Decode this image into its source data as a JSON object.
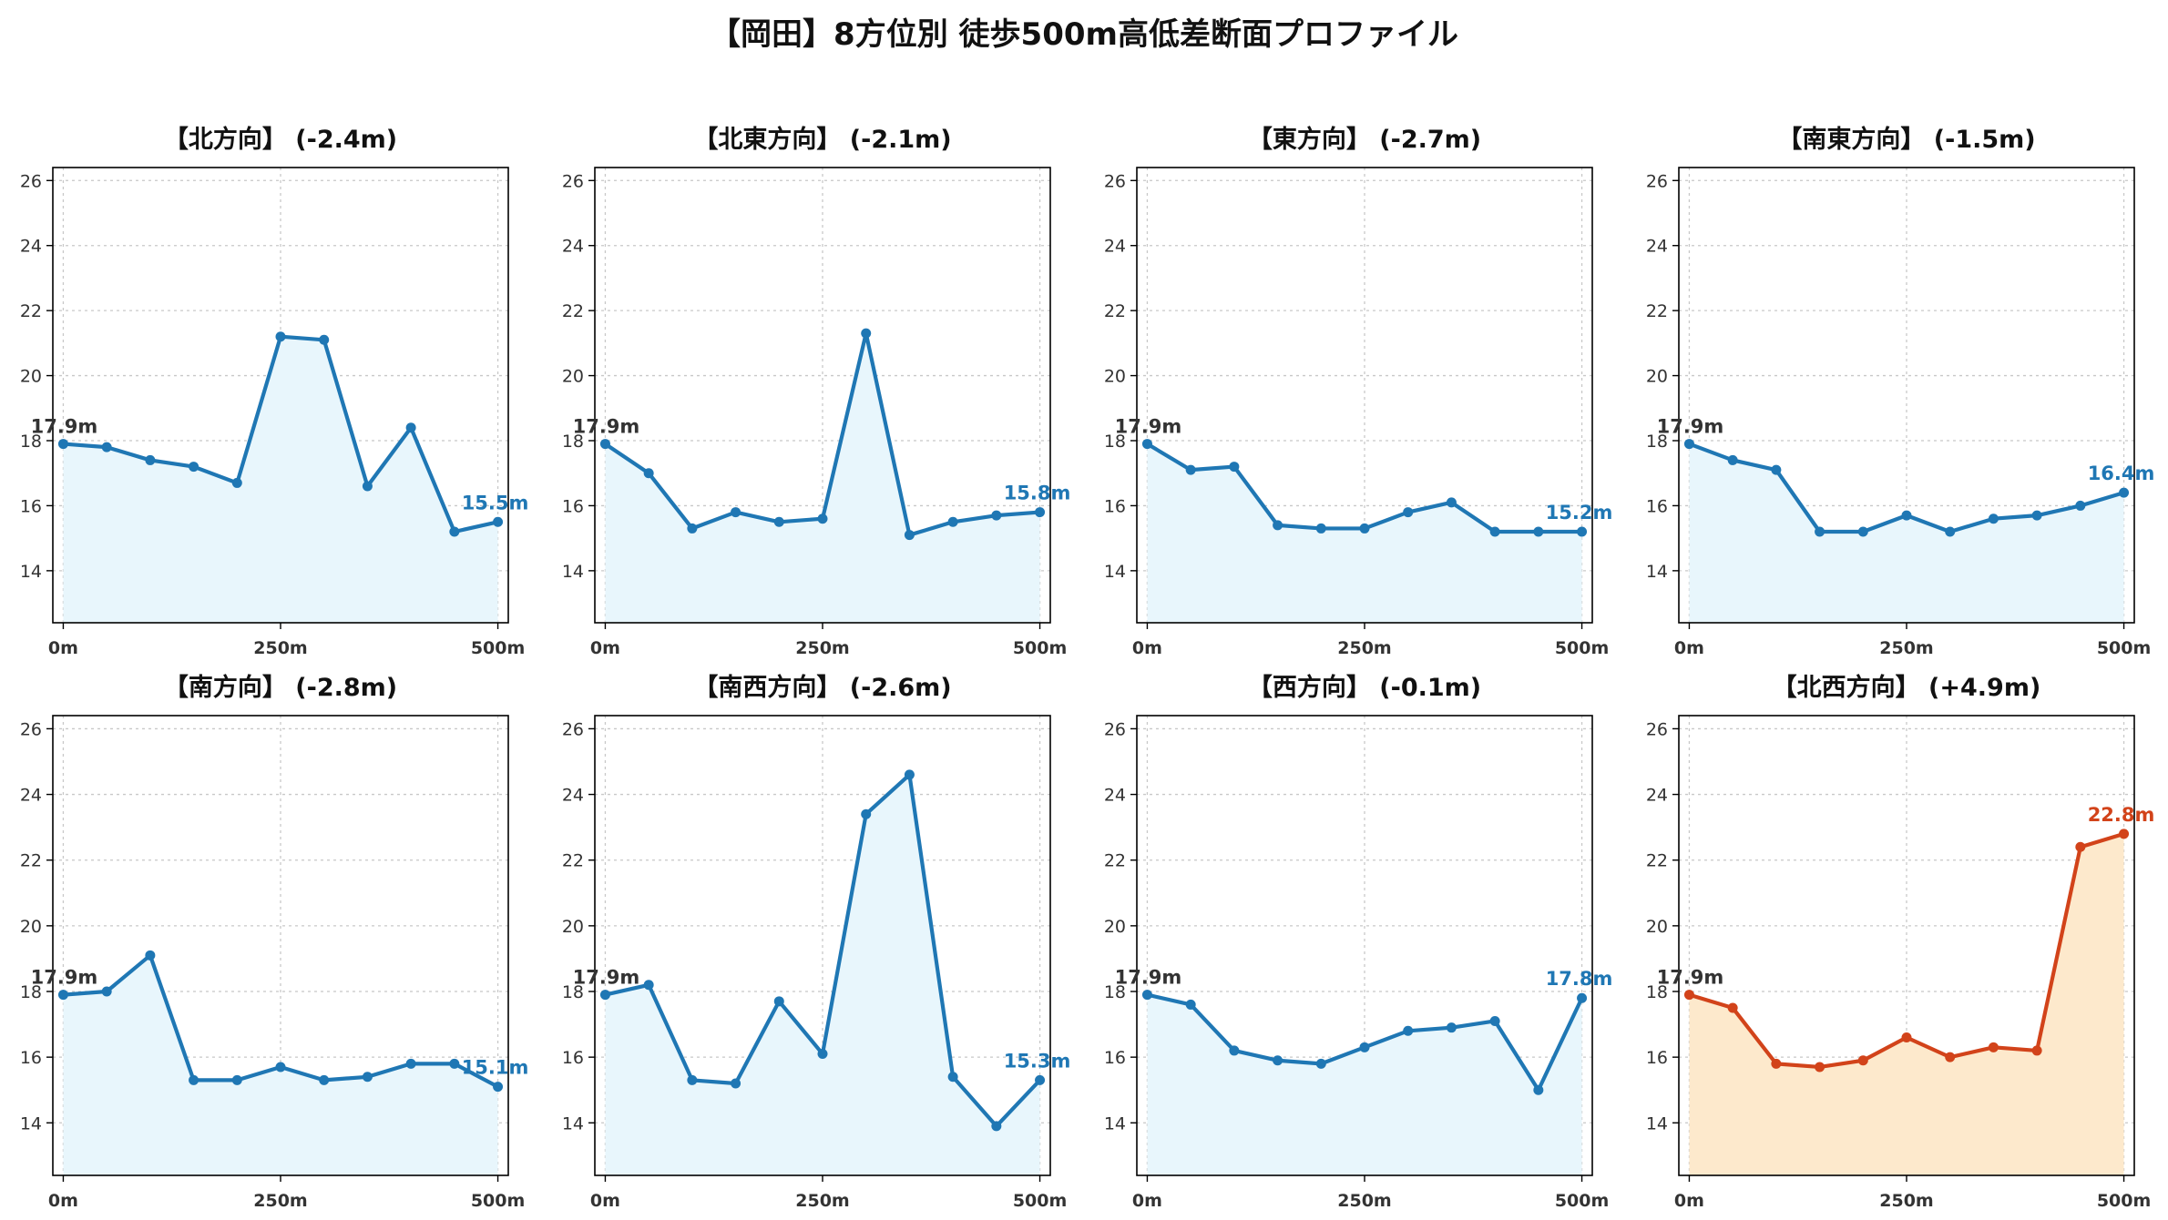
{
  "page_title": "【岡田】8方位別 徒歩500m高低差断面プロファイル",
  "colors": {
    "descending_line": "#1f77b4",
    "descending_fill": "#e8f6fc",
    "ascending_line": "#d2431a",
    "ascending_fill": "#fde9cc",
    "end_label_blue": "#1f77b4",
    "end_label_orange": "#d2431a"
  },
  "chart_data": [
    {
      "type": "area",
      "title": "【北方向】 (-2.4m)",
      "x": [
        0,
        50,
        100,
        150,
        200,
        250,
        300,
        350,
        400,
        450,
        500
      ],
      "values": [
        17.9,
        17.8,
        17.4,
        17.2,
        16.7,
        21.2,
        21.1,
        16.6,
        18.4,
        15.2,
        15.5
      ],
      "xticks": [
        {
          "value": 0,
          "label": "0m"
        },
        {
          "value": 250,
          "label": "250m"
        },
        {
          "value": 500,
          "label": "500m"
        }
      ],
      "yticks": [
        14,
        16,
        18,
        20,
        22,
        24,
        26
      ],
      "ylim": [
        12.4,
        26.4
      ],
      "xlim": [
        -12,
        512
      ],
      "start_label": "17.9m",
      "end_label": "15.5m",
      "trend": "descending",
      "grid": true
    },
    {
      "type": "area",
      "title": "【北東方向】 (-2.1m)",
      "x": [
        0,
        50,
        100,
        150,
        200,
        250,
        300,
        350,
        400,
        450,
        500
      ],
      "values": [
        17.9,
        17.0,
        15.3,
        15.8,
        15.5,
        15.6,
        21.3,
        15.1,
        15.5,
        15.7,
        15.8
      ],
      "xticks": [
        {
          "value": 0,
          "label": "0m"
        },
        {
          "value": 250,
          "label": "250m"
        },
        {
          "value": 500,
          "label": "500m"
        }
      ],
      "yticks": [
        14,
        16,
        18,
        20,
        22,
        24,
        26
      ],
      "ylim": [
        12.4,
        26.4
      ],
      "xlim": [
        -12,
        512
      ],
      "start_label": "17.9m",
      "end_label": "15.8m",
      "trend": "descending",
      "grid": true
    },
    {
      "type": "area",
      "title": "【東方向】 (-2.7m)",
      "x": [
        0,
        50,
        100,
        150,
        200,
        250,
        300,
        350,
        400,
        450,
        500
      ],
      "values": [
        17.9,
        17.1,
        17.2,
        15.4,
        15.3,
        15.3,
        15.8,
        16.1,
        15.2,
        15.2,
        15.2
      ],
      "xticks": [
        {
          "value": 0,
          "label": "0m"
        },
        {
          "value": 250,
          "label": "250m"
        },
        {
          "value": 500,
          "label": "500m"
        }
      ],
      "yticks": [
        14,
        16,
        18,
        20,
        22,
        24,
        26
      ],
      "ylim": [
        12.4,
        26.4
      ],
      "xlim": [
        -12,
        512
      ],
      "start_label": "17.9m",
      "end_label": "15.2m",
      "trend": "descending",
      "grid": true
    },
    {
      "type": "area",
      "title": "【南東方向】 (-1.5m)",
      "x": [
        0,
        50,
        100,
        150,
        200,
        250,
        300,
        350,
        400,
        450,
        500
      ],
      "values": [
        17.9,
        17.4,
        17.1,
        15.2,
        15.2,
        15.7,
        15.2,
        15.6,
        15.7,
        16.0,
        16.4
      ],
      "xticks": [
        {
          "value": 0,
          "label": "0m"
        },
        {
          "value": 250,
          "label": "250m"
        },
        {
          "value": 500,
          "label": "500m"
        }
      ],
      "yticks": [
        14,
        16,
        18,
        20,
        22,
        24,
        26
      ],
      "ylim": [
        12.4,
        26.4
      ],
      "xlim": [
        -12,
        512
      ],
      "start_label": "17.9m",
      "end_label": "16.4m",
      "trend": "descending",
      "grid": true
    },
    {
      "type": "area",
      "title": "【南方向】 (-2.8m)",
      "x": [
        0,
        50,
        100,
        150,
        200,
        250,
        300,
        350,
        400,
        450,
        500
      ],
      "values": [
        17.9,
        18.0,
        19.1,
        15.3,
        15.3,
        15.7,
        15.3,
        15.4,
        15.8,
        15.8,
        15.1
      ],
      "xticks": [
        {
          "value": 0,
          "label": "0m"
        },
        {
          "value": 250,
          "label": "250m"
        },
        {
          "value": 500,
          "label": "500m"
        }
      ],
      "yticks": [
        14,
        16,
        18,
        20,
        22,
        24,
        26
      ],
      "ylim": [
        12.4,
        26.4
      ],
      "xlim": [
        -12,
        512
      ],
      "start_label": "17.9m",
      "end_label": "15.1m",
      "trend": "descending",
      "grid": true
    },
    {
      "type": "area",
      "title": "【南西方向】 (-2.6m)",
      "x": [
        0,
        50,
        100,
        150,
        200,
        250,
        300,
        350,
        400,
        450,
        500
      ],
      "values": [
        17.9,
        18.2,
        15.3,
        15.2,
        17.7,
        16.1,
        23.4,
        24.6,
        15.4,
        13.9,
        15.3
      ],
      "xticks": [
        {
          "value": 0,
          "label": "0m"
        },
        {
          "value": 250,
          "label": "250m"
        },
        {
          "value": 500,
          "label": "500m"
        }
      ],
      "yticks": [
        14,
        16,
        18,
        20,
        22,
        24,
        26
      ],
      "ylim": [
        12.4,
        26.4
      ],
      "xlim": [
        -12,
        512
      ],
      "start_label": "17.9m",
      "end_label": "15.3m",
      "trend": "descending",
      "grid": true
    },
    {
      "type": "area",
      "title": "【西方向】 (-0.1m)",
      "x": [
        0,
        50,
        100,
        150,
        200,
        250,
        300,
        350,
        400,
        450,
        500
      ],
      "values": [
        17.9,
        17.6,
        16.2,
        15.9,
        15.8,
        16.3,
        16.8,
        16.9,
        17.1,
        15.0,
        17.8
      ],
      "xticks": [
        {
          "value": 0,
          "label": "0m"
        },
        {
          "value": 250,
          "label": "250m"
        },
        {
          "value": 500,
          "label": "500m"
        }
      ],
      "yticks": [
        14,
        16,
        18,
        20,
        22,
        24,
        26
      ],
      "ylim": [
        12.4,
        26.4
      ],
      "xlim": [
        -12,
        512
      ],
      "start_label": "17.9m",
      "end_label": "17.8m",
      "trend": "descending",
      "grid": true
    },
    {
      "type": "area",
      "title": "【北西方向】 (+4.9m)",
      "x": [
        0,
        50,
        100,
        150,
        200,
        250,
        300,
        350,
        400,
        450,
        500
      ],
      "values": [
        17.9,
        17.5,
        15.8,
        15.7,
        15.9,
        16.6,
        16.0,
        16.3,
        16.2,
        22.4,
        22.8
      ],
      "xticks": [
        {
          "value": 0,
          "label": "0m"
        },
        {
          "value": 250,
          "label": "250m"
        },
        {
          "value": 500,
          "label": "500m"
        }
      ],
      "yticks": [
        14,
        16,
        18,
        20,
        22,
        24,
        26
      ],
      "ylim": [
        12.4,
        26.4
      ],
      "xlim": [
        -12,
        512
      ],
      "start_label": "17.9m",
      "end_label": "22.8m",
      "trend": "ascending",
      "grid": true
    }
  ]
}
